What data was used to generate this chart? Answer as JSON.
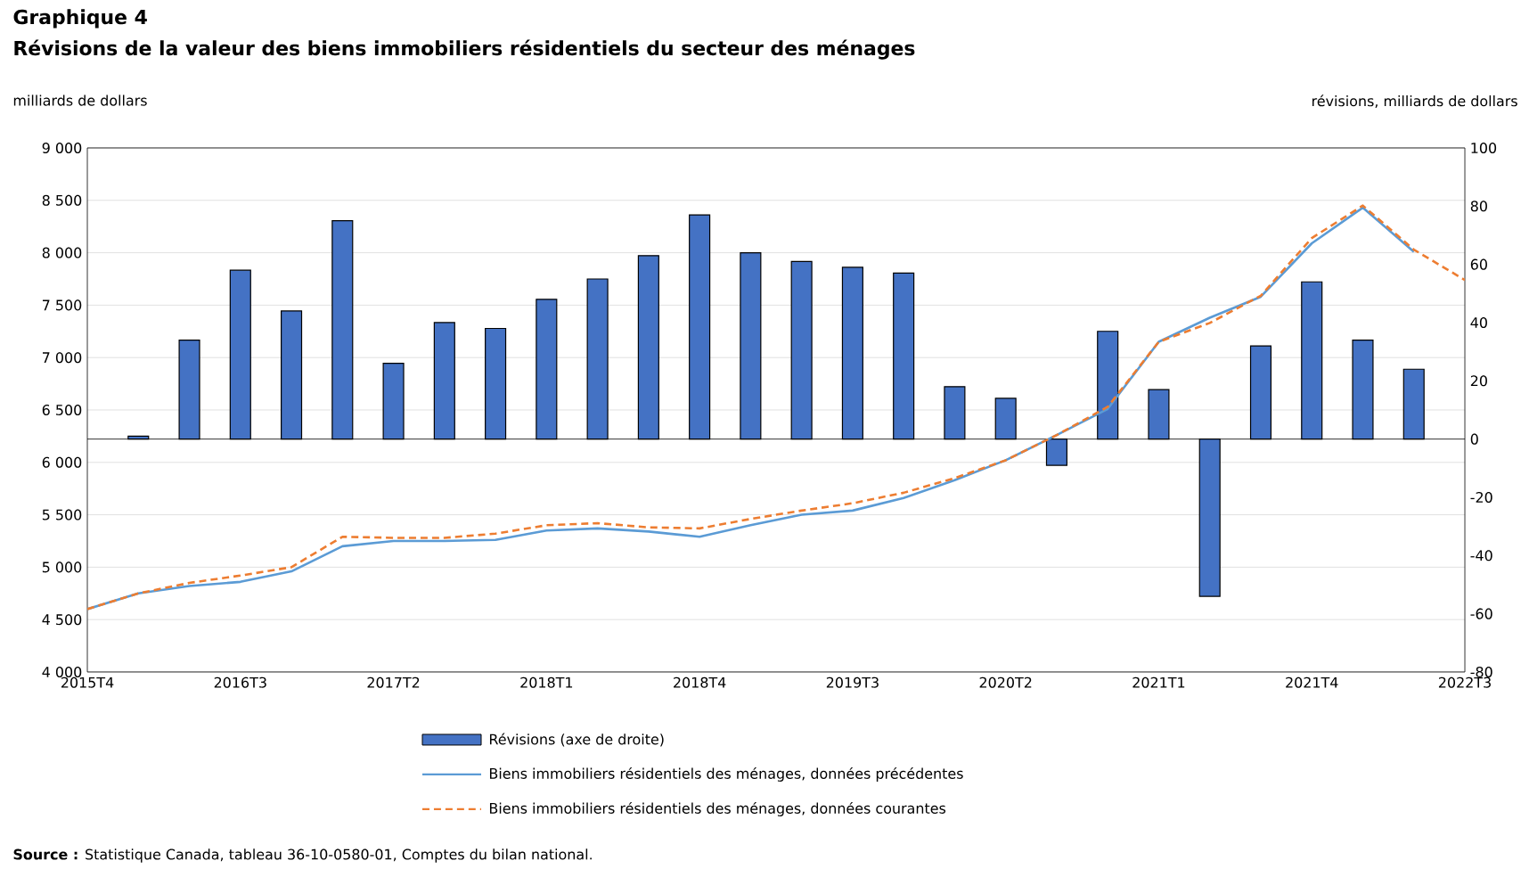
{
  "chart_data": {
    "type": "bar",
    "title": "Graphique 4",
    "subtitle": "Révisions de la valeur des biens immobiliers résidentiels du secteur des ménages",
    "ylabel": "milliards de dollars",
    "y2label": "révisions, milliards de dollars",
    "categories": [
      "2015T4",
      null,
      null,
      "2016T3",
      null,
      null,
      "2017T2",
      null,
      null,
      "2018T1",
      null,
      null,
      "2018T4",
      null,
      null,
      "2019T3",
      null,
      null,
      "2020T2",
      null,
      null,
      "2021T1",
      null,
      null,
      "2021T4",
      null,
      null,
      "2022T3"
    ],
    "series": [
      {
        "name": "Révisions (axe de droite)",
        "axis": "y2",
        "color": "#4472c4",
        "values": [
          null,
          1,
          34,
          58,
          44,
          75,
          26,
          40,
          38,
          48,
          55,
          63,
          77,
          64,
          61,
          59,
          57,
          18,
          14,
          -9,
          37,
          17,
          -54,
          32,
          54,
          34,
          24,
          null
        ]
      },
      {
        "name": "Biens immobiliers résidentiels des ménages, données précédentes",
        "type": "line",
        "line_style": "solid",
        "color": "#5b9bd5",
        "values": [
          4600,
          4750,
          4820,
          4860,
          4960,
          5200,
          5250,
          5250,
          5260,
          5350,
          5370,
          5340,
          5290,
          5400,
          5500,
          5540,
          5660,
          5830,
          6020,
          6260,
          6510,
          7150,
          7380,
          7580,
          8090,
          8430,
          8010,
          null
        ]
      },
      {
        "name": "Biens immobiliers résidentiels des ménages, données courantes",
        "type": "line",
        "line_style": "dashed",
        "color": "#ed7d31",
        "values": [
          4600,
          4750,
          4850,
          4920,
          5000,
          5290,
          5280,
          5280,
          5320,
          5400,
          5420,
          5380,
          5370,
          5460,
          5540,
          5610,
          5710,
          5850,
          6020,
          6260,
          6530,
          7150,
          7330,
          7590,
          8140,
          8450,
          8030,
          7740
        ]
      }
    ],
    "ylim": [
      4000,
      9000
    ],
    "yticks": [
      {
        "value": 4000,
        "label": "4 000"
      },
      {
        "value": 4500,
        "label": "4 500"
      },
      {
        "value": 5000,
        "label": "5 000"
      },
      {
        "value": 5500,
        "label": "5 500"
      },
      {
        "value": 6000,
        "label": "6 000"
      },
      {
        "value": 6500,
        "label": "6 500"
      },
      {
        "value": 7000,
        "label": "7 000"
      },
      {
        "value": 7500,
        "label": "7 500"
      },
      {
        "value": 8000,
        "label": "8 000"
      },
      {
        "value": 8500,
        "label": "8 500"
      },
      {
        "value": 9000,
        "label": "9 000"
      }
    ],
    "y2lim": [
      -80,
      100
    ],
    "y2ticks": [
      -80,
      -60,
      -40,
      -20,
      0,
      20,
      40,
      60,
      80,
      100
    ],
    "grid": "y",
    "legend": "bottom",
    "annotations": [
      "**Source :** Statistique Canada, tableau 36-10-0580-01, Comptes du bilan national."
    ]
  }
}
